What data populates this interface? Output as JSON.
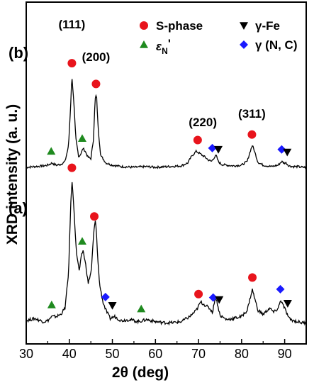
{
  "chart_data": {
    "type": "line",
    "xlabel": "2θ (deg)",
    "ylabel": "XRD intensity (a. u.)",
    "xlim": [
      30,
      95
    ],
    "x_ticks": [
      "30",
      "40",
      "50",
      "60",
      "70",
      "80",
      "90"
    ],
    "y_ticks_labeled": false,
    "grid": false,
    "legend_placement": "top-right",
    "legend": [
      {
        "marker": "circle",
        "color": "#e8141c",
        "text": "S-phase"
      },
      {
        "marker": "triangle-down",
        "color": "#000000",
        "text": "γ-Fe"
      },
      {
        "marker": "triangle-up",
        "color": "#1f8a1f",
        "text": "εN'"
      },
      {
        "marker": "diamond",
        "color": "#1a1aff",
        "text": "γ (N, C)"
      }
    ],
    "peak_labels": [
      {
        "text": "(111)",
        "x": 40.6
      },
      {
        "text": "(200)",
        "x": 46.2
      },
      {
        "text": "(220)",
        "x": 71.0
      },
      {
        "text": "(311)",
        "x": 82.4
      }
    ],
    "series": [
      {
        "name": "(b)",
        "x": [
          30,
          32,
          34,
          35,
          36,
          36.5,
          37,
          38,
          39,
          39.8,
          40.3,
          40.6,
          41.0,
          41.5,
          42.2,
          42.8,
          43.2,
          43.7,
          44.3,
          45.0,
          45.6,
          46.0,
          46.3,
          46.7,
          47.3,
          48.5,
          50,
          52,
          55,
          58,
          60,
          63,
          66,
          67.5,
          68.5,
          69.5,
          70.5,
          71.5,
          72.3,
          73,
          73.7,
          74.1,
          74.6,
          75.3,
          76.5,
          78,
          80,
          81.3,
          82.0,
          82.5,
          83.0,
          83.8,
          85,
          87,
          88.5,
          89.3,
          89.8,
          90.3,
          91,
          92,
          93,
          94,
          95
        ],
        "intensity": [
          2,
          3,
          4,
          5,
          8,
          6,
          5,
          6,
          10,
          30,
          85,
          128,
          95,
          42,
          16,
          22,
          28,
          24,
          16,
          14,
          40,
          95,
          102,
          55,
          18,
          8,
          5,
          3,
          2,
          3,
          2,
          3,
          4,
          8,
          18,
          24,
          20,
          16,
          12,
          10,
          16,
          18,
          10,
          6,
          5,
          4,
          5,
          10,
          24,
          32,
          24,
          9,
          5,
          3,
          5,
          10,
          8,
          8,
          4,
          3,
          3,
          2,
          2
        ],
        "markers": [
          {
            "phase": "S-phase",
            "x": 40.6
          },
          {
            "phase": "S-phase",
            "x": 46.2
          },
          {
            "phase": "S-phase",
            "x": 69.8
          },
          {
            "phase": "S-phase",
            "x": 82.4
          },
          {
            "phase": "εN'",
            "x": 35.8
          },
          {
            "phase": "εN'",
            "x": 43.0
          },
          {
            "phase": "γ (N, C)",
            "x": 73.2
          },
          {
            "phase": "γ (N, C)",
            "x": 89.3
          },
          {
            "phase": "γ-Fe",
            "x": 74.6
          },
          {
            "phase": "γ-Fe",
            "x": 90.6
          }
        ]
      },
      {
        "name": "(a)",
        "x": [
          30,
          32,
          34,
          35,
          36,
          37,
          38,
          39,
          39.8,
          40.3,
          40.6,
          41.0,
          41.6,
          42.3,
          42.8,
          43.2,
          43.8,
          44.4,
          45.1,
          45.7,
          46.1,
          46.5,
          47.0,
          47.8,
          48.5,
          49.5,
          50.5,
          52,
          54,
          56,
          58,
          60,
          62,
          64,
          66,
          68,
          69.5,
          70.5,
          71.5,
          72.5,
          73.3,
          73.9,
          74.4,
          75,
          76.5,
          78,
          80,
          81.3,
          82.0,
          82.5,
          83.0,
          83.8,
          85,
          86.5,
          87.5,
          88.5,
          89.1,
          89.5,
          90.2,
          91,
          92,
          93,
          94,
          95
        ],
        "intensity": [
          4,
          6,
          3,
          4,
          8,
          8,
          10,
          16,
          48,
          112,
          140,
          118,
          72,
          52,
          66,
          72,
          58,
          40,
          52,
          90,
          102,
          72,
          40,
          22,
          14,
          6,
          8,
          4,
          5,
          3,
          5,
          3,
          2,
          2,
          3,
          8,
          14,
          22,
          19,
          16,
          12,
          28,
          20,
          9,
          5,
          6,
          8,
          14,
          26,
          34,
          26,
          14,
          10,
          16,
          12,
          16,
          24,
          20,
          14,
          6,
          4,
          3,
          2,
          2
        ],
        "markers": [
          {
            "phase": "S-phase",
            "x": 40.6
          },
          {
            "phase": "S-phase",
            "x": 45.8
          },
          {
            "phase": "S-phase",
            "x": 70.0
          },
          {
            "phase": "S-phase",
            "x": 82.5
          },
          {
            "phase": "εN'",
            "x": 35.9
          },
          {
            "phase": "εN'",
            "x": 43.0
          },
          {
            "phase": "εN'",
            "x": 56.7
          },
          {
            "phase": "γ (N, C)",
            "x": 48.4
          },
          {
            "phase": "γ (N, C)",
            "x": 73.4
          },
          {
            "phase": "γ (N, C)",
            "x": 89.0
          },
          {
            "phase": "γ-Fe",
            "x": 50.0
          },
          {
            "phase": "γ-Fe",
            "x": 74.8
          },
          {
            "phase": "γ-Fe",
            "x": 90.7
          }
        ]
      }
    ]
  }
}
